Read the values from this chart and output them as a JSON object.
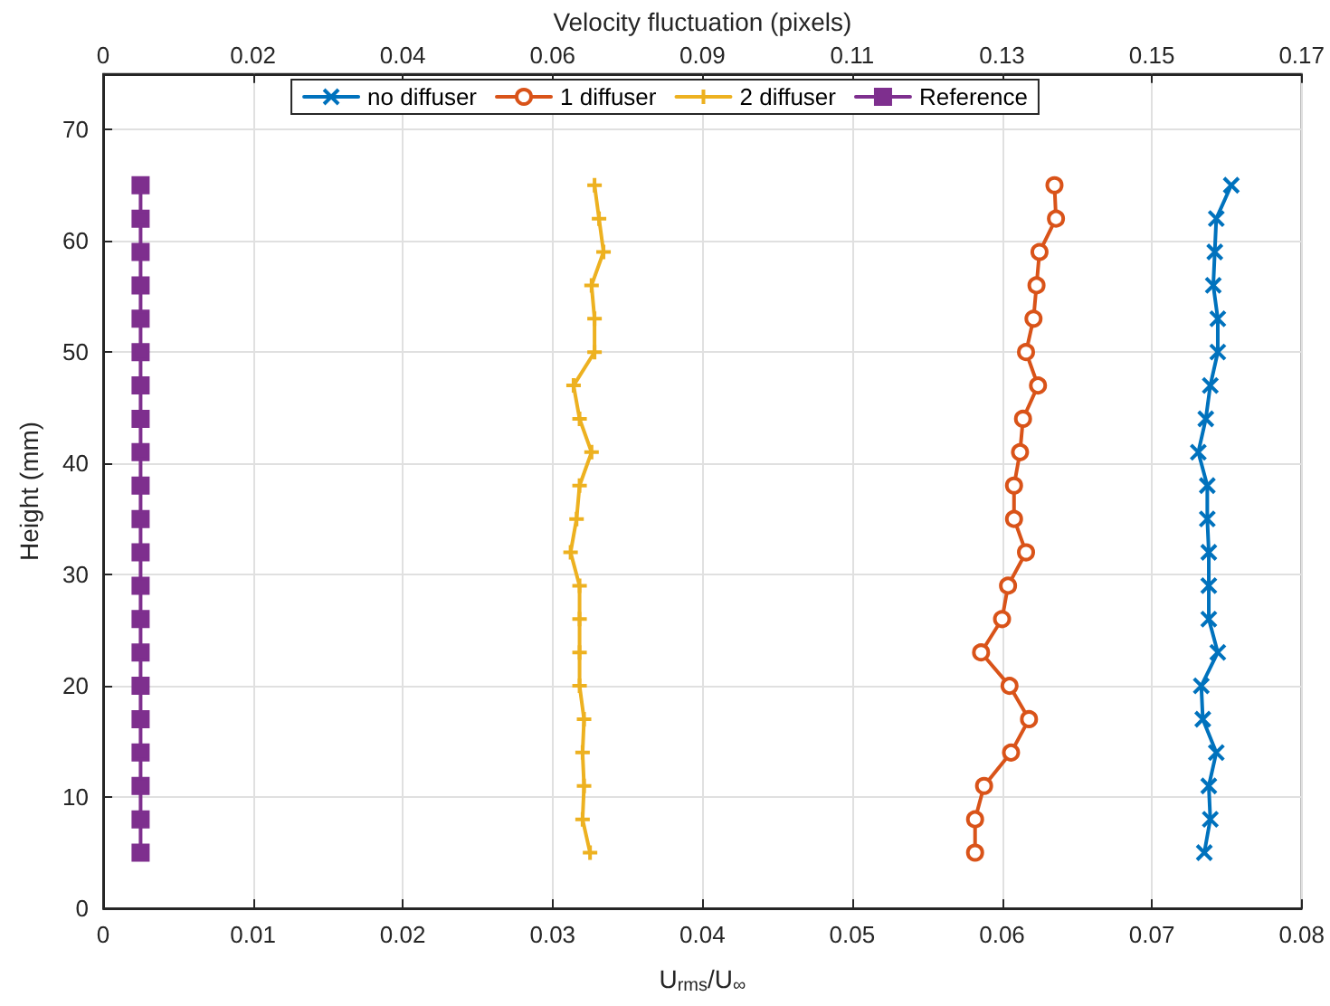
{
  "chart_data": {
    "type": "line",
    "xlabel": "U$_{rms}$/U$_{∞}$",
    "ylabel": "Height (mm)",
    "x2label": "Velocity fluctuation (pixels)",
    "xlim": [
      0,
      0.08
    ],
    "xticks": [
      0,
      0.01,
      0.02,
      0.03,
      0.04,
      0.05,
      0.06,
      0.07,
      0.08
    ],
    "x2lim": [
      0,
      0.17
    ],
    "x2ticks": [
      0,
      {
        "value": 0.02125,
        "label": "0.02"
      },
      {
        "value": 0.0425,
        "label": "0.04"
      },
      {
        "value": 0.06375,
        "label": "0.06"
      },
      {
        "value": 0.085,
        "label": "0.09"
      },
      {
        "value": 0.10625,
        "label": "0.11"
      },
      {
        "value": 0.1275,
        "label": "0.13"
      },
      {
        "value": 0.14875,
        "label": "0.15"
      },
      0.17
    ],
    "ylim": [
      0,
      75
    ],
    "yticks": [
      0,
      10,
      20,
      30,
      40,
      50,
      60,
      70
    ],
    "grid": true,
    "legend": "top",
    "line_style": "solid",
    "series": [
      {
        "name": "no diffuser",
        "color": "#0072bd",
        "marker": "cross",
        "x": [
          0.0735,
          0.0739,
          0.0738,
          0.0743,
          0.0734,
          0.0733,
          0.0744,
          0.0738,
          0.0738,
          0.0738,
          0.0737,
          0.0737,
          0.0731,
          0.0736,
          0.0739,
          0.0744,
          0.0744,
          0.0741,
          0.0742,
          0.0743,
          0.0753
        ],
        "values": [
          5,
          8,
          11,
          14,
          17,
          20,
          23,
          26,
          29,
          32,
          35,
          38,
          41,
          44,
          47,
          50,
          53,
          56,
          59,
          62,
          65
        ]
      },
      {
        "name": "1 diffuser",
        "color": "#d95319",
        "marker": "circle",
        "x": [
          0.0582,
          0.0582,
          0.0588,
          0.0606,
          0.0618,
          0.0605,
          0.0586,
          0.06,
          0.0604,
          0.0616,
          0.0608,
          0.0608,
          0.0612,
          0.0614,
          0.0624,
          0.0616,
          0.0621,
          0.0623,
          0.0625,
          0.0636,
          0.0635
        ],
        "values": [
          5,
          8,
          11,
          14,
          17,
          20,
          23,
          26,
          29,
          32,
          35,
          38,
          41,
          44,
          47,
          50,
          53,
          56,
          59,
          62,
          65
        ]
      },
      {
        "name": "2 diffuser",
        "color": "#edb120",
        "marker": "plus",
        "x": [
          0.0325,
          0.032,
          0.0321,
          0.032,
          0.0321,
          0.0318,
          0.0318,
          0.0318,
          0.0318,
          0.0312,
          0.0316,
          0.0318,
          0.0326,
          0.0318,
          0.0314,
          0.0328,
          0.0328,
          0.0326,
          0.0334,
          0.0331,
          0.0328
        ],
        "values": [
          5,
          8,
          11,
          14,
          17,
          20,
          23,
          26,
          29,
          32,
          35,
          38,
          41,
          44,
          47,
          50,
          53,
          56,
          59,
          62,
          65
        ]
      },
      {
        "name": "Reference",
        "color": "#7e2f8e",
        "marker": "square",
        "x": [
          0.0025,
          0.0025,
          0.0025,
          0.0025,
          0.0025,
          0.0025,
          0.0025,
          0.0025,
          0.0025,
          0.0025,
          0.0025,
          0.0025,
          0.0025,
          0.0025,
          0.0025,
          0.0025,
          0.0025,
          0.0025,
          0.0025,
          0.0025,
          0.0025
        ],
        "values": [
          5,
          8,
          11,
          14,
          17,
          20,
          23,
          26,
          29,
          32,
          35,
          38,
          41,
          44,
          47,
          50,
          53,
          56,
          59,
          62,
          65
        ]
      }
    ]
  }
}
